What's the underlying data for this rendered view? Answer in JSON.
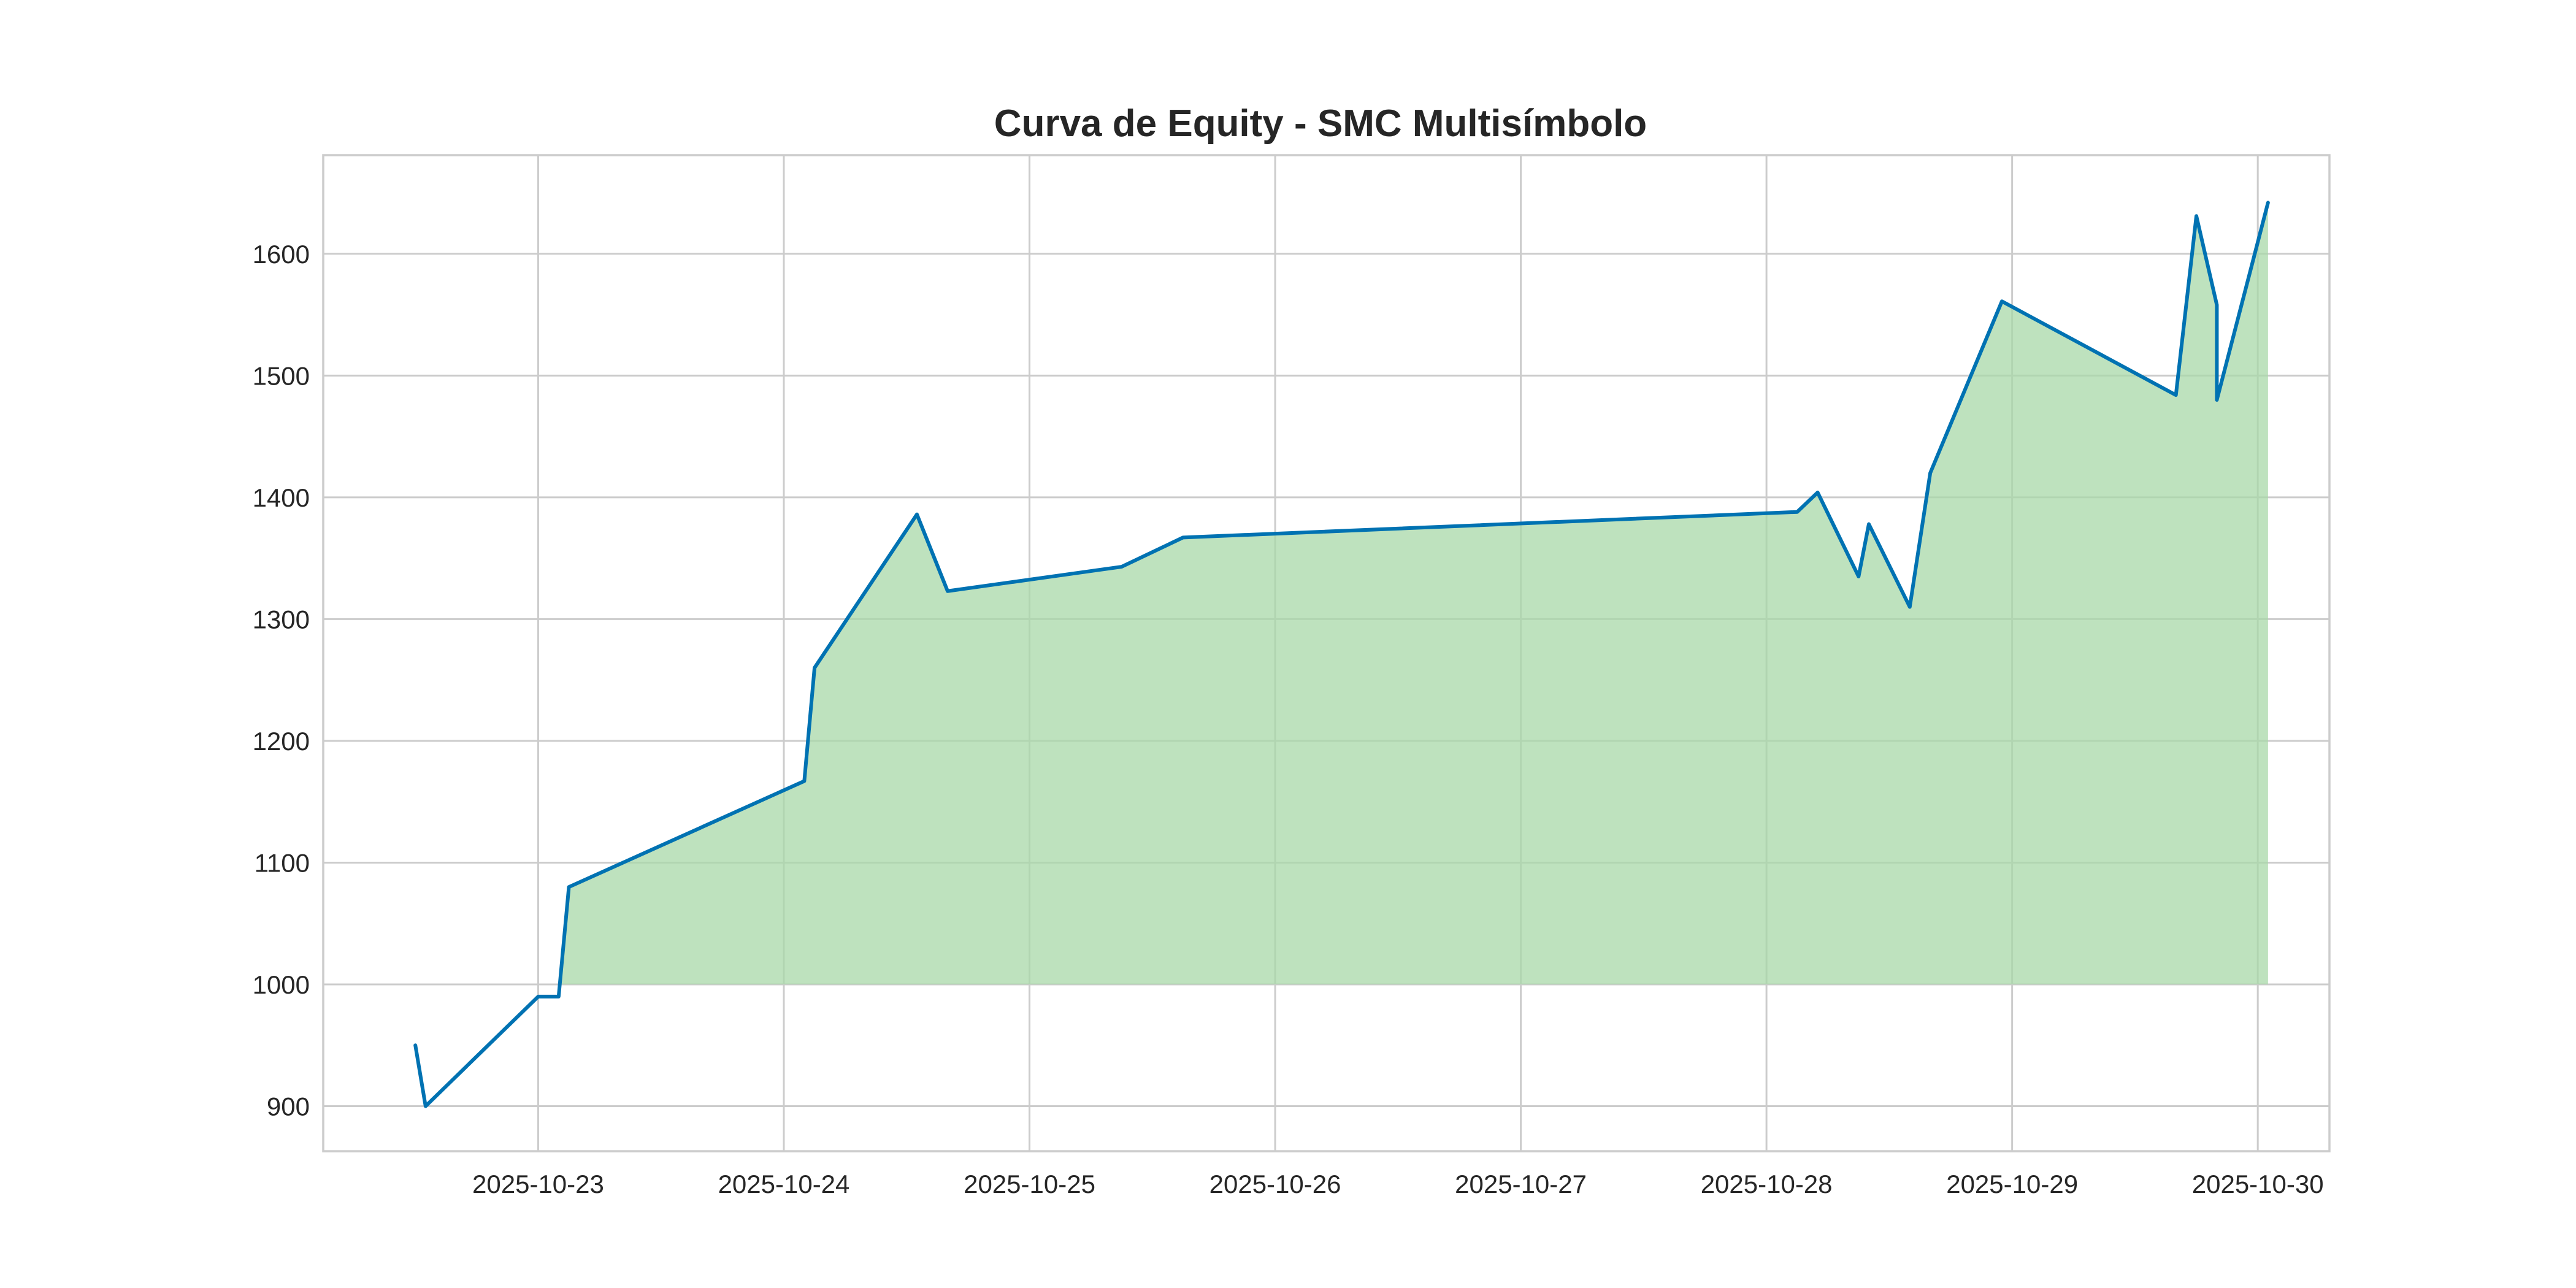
{
  "chart_data": {
    "type": "line",
    "title": "Curva de Equity - SMC Multisímbolo",
    "xlabel": "",
    "ylabel": "",
    "x_axis_type": "datetime",
    "xlim": [
      "2025-10-22 03:00",
      "2025-10-30 07:00"
    ],
    "ylim": [
      863,
      1681
    ],
    "x_ticks": [
      "2025-10-23",
      "2025-10-24",
      "2025-10-25",
      "2025-10-26",
      "2025-10-27",
      "2025-10-28",
      "2025-10-29",
      "2025-10-30"
    ],
    "y_ticks": [
      900,
      1000,
      1100,
      1200,
      1300,
      1400,
      1500,
      1600
    ],
    "grid": true,
    "legend": false,
    "fill_baseline": 1000,
    "colors": {
      "line": "#0072B2",
      "fill": "#a8d8a8",
      "grid": "#cccccc",
      "text": "#262626"
    },
    "series": [
      {
        "x": [
          "2025-10-22 12:00",
          "2025-10-22 13:00",
          "2025-10-23 00:00",
          "2025-10-23 02:00",
          "2025-10-23 03:00",
          "2025-10-24 02:00",
          "2025-10-24 03:00",
          "2025-10-24 13:00",
          "2025-10-24 16:00",
          "2025-10-25 09:00",
          "2025-10-25 15:00",
          "2025-10-28 03:00",
          "2025-10-28 05:00",
          "2025-10-28 09:00",
          "2025-10-28 10:00",
          "2025-10-28 14:00",
          "2025-10-28 16:00",
          "2025-10-28 23:00",
          "2025-10-29 16:00",
          "2025-10-29 18:00",
          "2025-10-29 20:00",
          "2025-10-29 20:00",
          "2025-10-30 01:00"
        ],
        "y": [
          950,
          900,
          990,
          990,
          1080,
          1167,
          1260,
          1386,
          1323,
          1343,
          1367,
          1388,
          1404,
          1335,
          1378,
          1310,
          1420,
          1561,
          1484,
          1631,
          1558,
          1480,
          1642
        ]
      }
    ]
  }
}
